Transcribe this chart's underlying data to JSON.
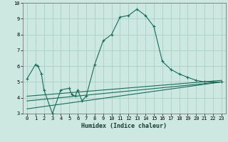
{
  "xlabel": "Humidex (Indice chaleur)",
  "bg_color": "#cce8e0",
  "grid_color": "#aacfc8",
  "line_color": "#1a6b5a",
  "xlim": [
    -0.5,
    23.5
  ],
  "ylim": [
    3,
    10
  ],
  "yticks": [
    3,
    4,
    5,
    6,
    7,
    8,
    9,
    10
  ],
  "xticks": [
    0,
    1,
    2,
    3,
    4,
    5,
    6,
    7,
    8,
    9,
    10,
    11,
    12,
    13,
    14,
    15,
    16,
    17,
    18,
    19,
    20,
    21,
    22,
    23
  ],
  "series1_x": [
    0,
    1,
    1.3,
    1.7,
    2,
    3,
    4,
    5,
    5.3,
    5.7,
    6,
    6.5,
    7,
    8,
    9,
    10,
    11,
    12,
    13,
    14,
    15,
    16,
    17,
    18,
    19,
    20,
    21,
    22,
    23
  ],
  "series1_y": [
    5.2,
    6.1,
    6.0,
    5.5,
    4.5,
    3.0,
    4.5,
    4.6,
    4.2,
    4.1,
    4.5,
    3.8,
    4.1,
    6.1,
    7.6,
    8.0,
    9.1,
    9.2,
    9.6,
    9.2,
    8.5,
    6.3,
    5.8,
    5.5,
    5.3,
    5.1,
    5.0,
    5.0,
    5.0
  ],
  "series2_x": [
    0,
    23
  ],
  "series2_y": [
    4.1,
    5.1
  ],
  "series3_x": [
    0,
    23
  ],
  "series3_y": [
    3.8,
    5.0
  ],
  "series4_x": [
    0,
    23
  ],
  "series4_y": [
    3.3,
    5.0
  ],
  "xlabel_fontsize": 6.0,
  "tick_fontsize": 5.0
}
